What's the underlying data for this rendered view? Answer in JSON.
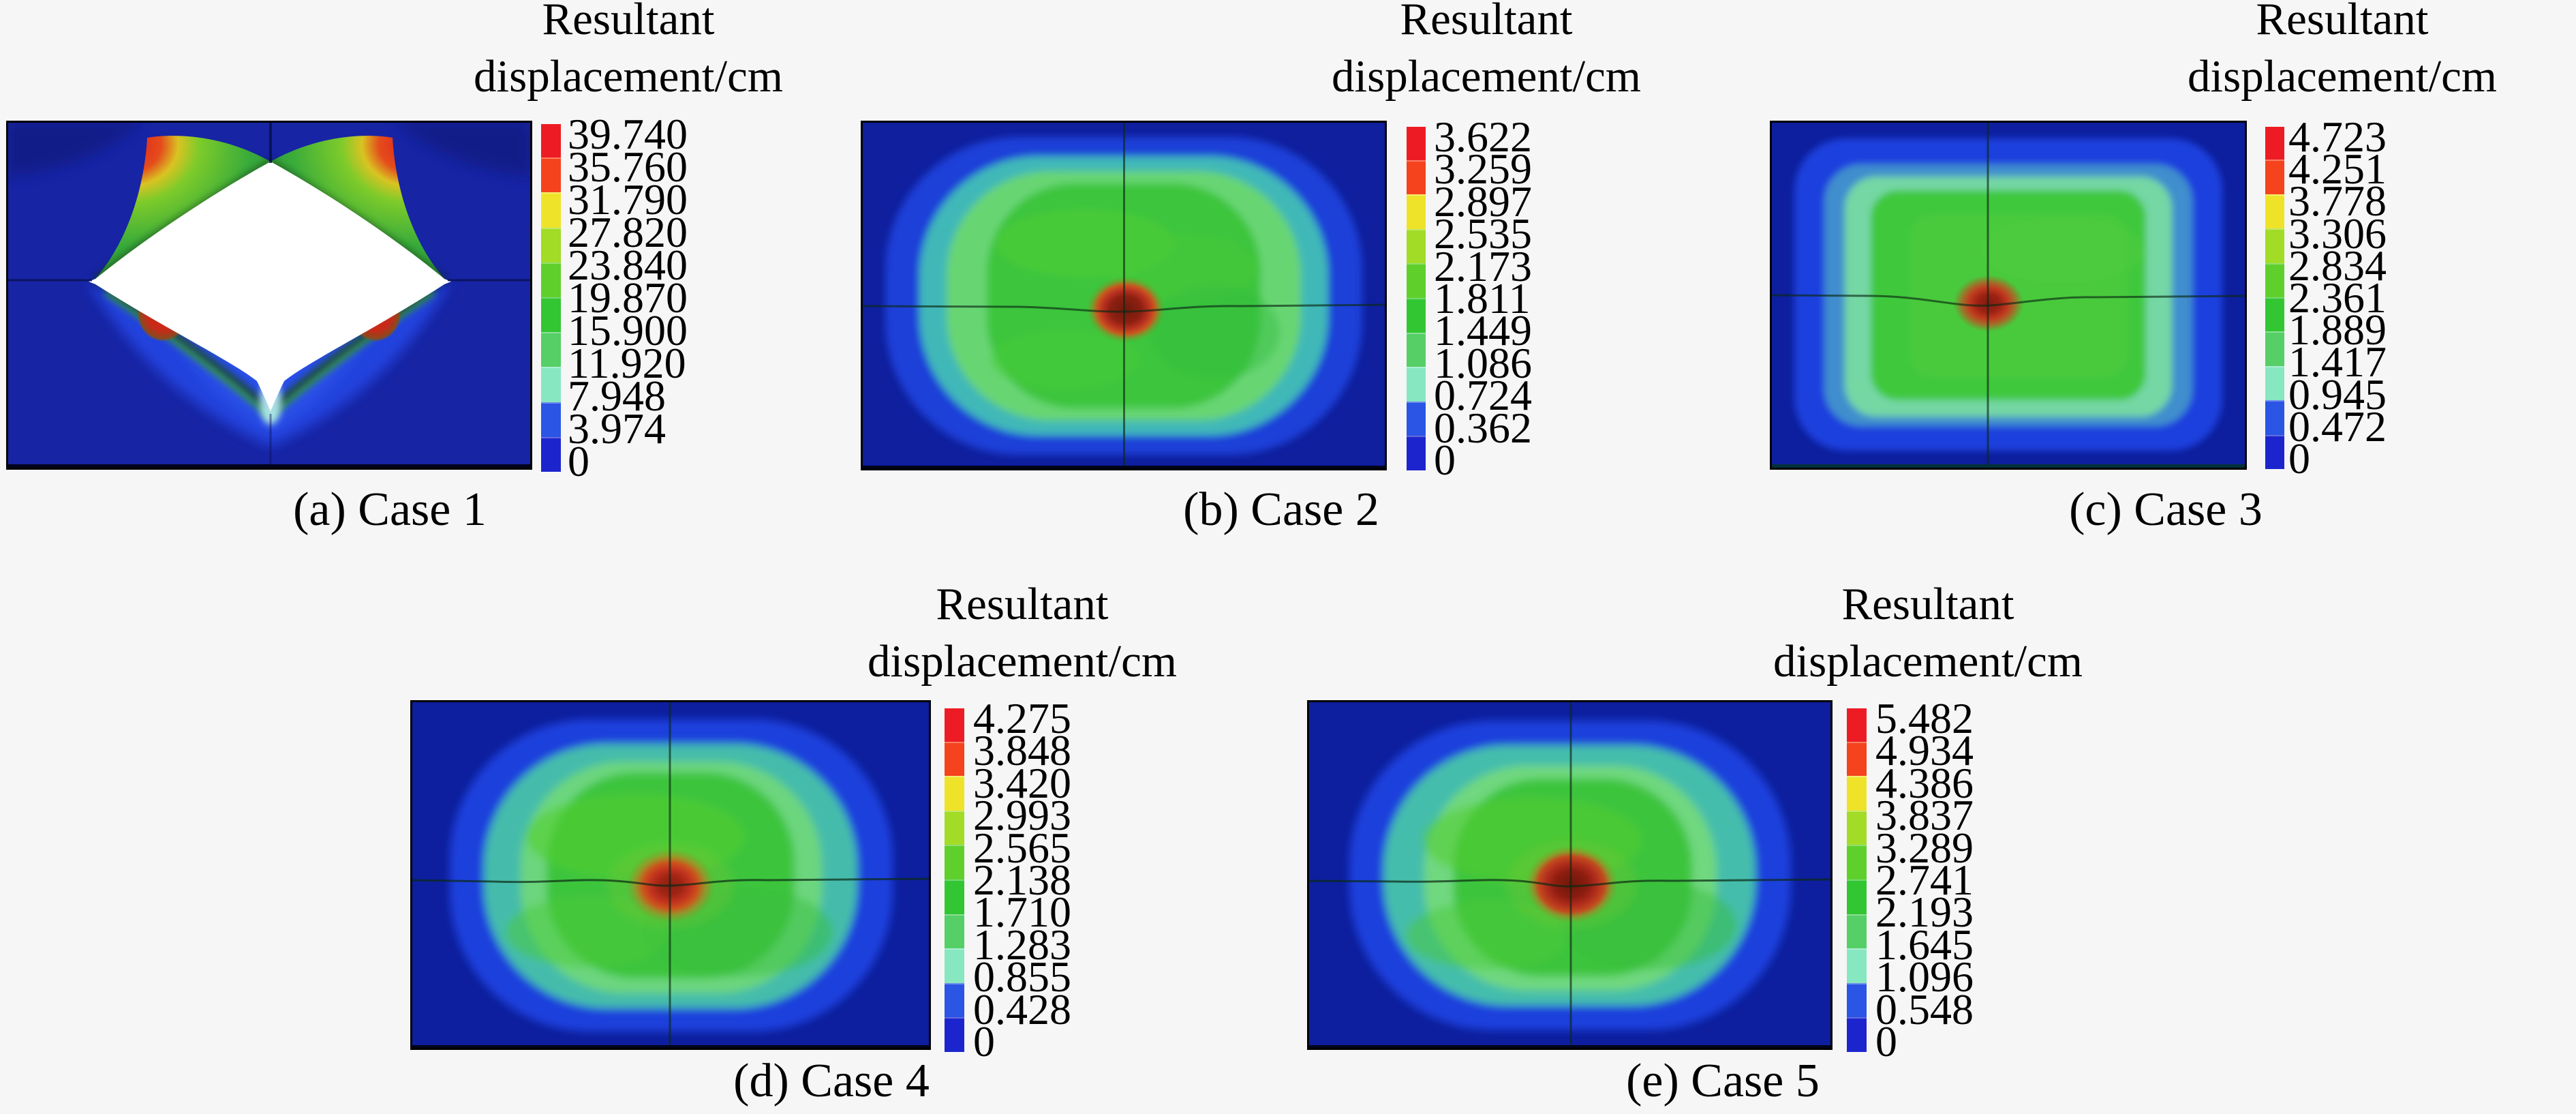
{
  "figure": {
    "background_color": "#f6f6f6",
    "text_color": "#000000",
    "legend": {
      "title_line1": "Resultant",
      "title_line2": "displacement/cm",
      "segment_colors_top_to_bottom": [
        "#ed1c24",
        "#f5431d",
        "#efe32a",
        "#a2dc26",
        "#5fd02b",
        "#33c633",
        "#55cf66",
        "#87e7c1",
        "#2a55e5",
        "#1c25cd"
      ]
    },
    "panels": [
      {
        "id": "a",
        "case": "Case 1",
        "caption": "(a) Case 1",
        "tick_labels": [
          "39.740",
          "35.760",
          "31.790",
          "27.820",
          "23.840",
          "19.870",
          "15.900",
          "11.920",
          "7.948",
          "3.974",
          "0"
        ]
      },
      {
        "id": "b",
        "case": "Case 2",
        "caption": "(b) Case 2",
        "tick_labels": [
          "3.622",
          "3.259",
          "2.897",
          "2.535",
          "2.173",
          "1.811",
          "1.449",
          "1.086",
          "0.724",
          "0.362",
          "0"
        ]
      },
      {
        "id": "c",
        "case": "Case 3",
        "caption": "(c) Case 3",
        "tick_labels": [
          "4.723",
          "4.251",
          "3.778",
          "3.306",
          "2.834",
          "2.361",
          "1.889",
          "1.417",
          "0.945",
          "0.472",
          "0"
        ]
      },
      {
        "id": "d",
        "case": "Case 4",
        "caption": "(d) Case 4",
        "tick_labels": [
          "4.275",
          "3.848",
          "3.420",
          "2.993",
          "2.565",
          "2.138",
          "1.710",
          "1.283",
          "0.855",
          "0.428",
          "0"
        ]
      },
      {
        "id": "e",
        "case": "Case 5",
        "caption": "(e) Case 5",
        "tick_labels": [
          "5.482",
          "4.934",
          "4.386",
          "3.837",
          "3.289",
          "2.741",
          "2.193",
          "1.645",
          "1.096",
          "0.548",
          "0"
        ]
      }
    ]
  },
  "chart_data": [
    {
      "type": "heatmap",
      "panel": "(a) Case 1",
      "title": "Resultant displacement/cm",
      "units": "cm",
      "min": 0,
      "max": 39.74,
      "colorbar_ticks": [
        39.74,
        35.76,
        31.79,
        27.82,
        23.84,
        19.87,
        15.9,
        11.92,
        7.948,
        3.974,
        0
      ],
      "legend_position": "right",
      "pattern": "saturated white four-point star with green-to-red corner lobes on dark blue field"
    },
    {
      "type": "heatmap",
      "panel": "(b) Case 2",
      "title": "Resultant displacement/cm",
      "units": "cm",
      "min": 0,
      "max": 3.622,
      "colorbar_ticks": [
        3.622,
        3.259,
        2.897,
        2.535,
        2.173,
        1.811,
        1.449,
        1.086,
        0.724,
        0.362,
        0
      ],
      "legend_position": "right",
      "pattern": "green rounded oval contour with dark-red peak spot at center crosshair on dark blue field"
    },
    {
      "type": "heatmap",
      "panel": "(c) Case 3",
      "title": "Resultant displacement/cm",
      "units": "cm",
      "min": 0,
      "max": 4.723,
      "colorbar_ticks": [
        4.723,
        4.251,
        3.778,
        3.306,
        2.834,
        2.361,
        1.889,
        1.417,
        0.945,
        0.472,
        0
      ],
      "legend_position": "right",
      "pattern": "green rounded-rectangle contour rings with dark-red peak spot left of center on dark blue field"
    },
    {
      "type": "heatmap",
      "panel": "(d) Case 4",
      "title": "Resultant displacement/cm",
      "units": "cm",
      "min": 0,
      "max": 4.275,
      "colorbar_ticks": [
        4.275,
        3.848,
        3.42,
        2.993,
        2.565,
        2.138,
        1.71,
        1.283,
        0.855,
        0.428,
        0
      ],
      "legend_position": "right",
      "pattern": "green oval contour with orange-red peak spot at center crosshair on dark blue field"
    },
    {
      "type": "heatmap",
      "panel": "(e) Case 5",
      "title": "Resultant displacement/cm",
      "units": "cm",
      "min": 0,
      "max": 5.482,
      "colorbar_ticks": [
        5.482,
        4.934,
        4.386,
        3.837,
        3.289,
        2.741,
        2.193,
        1.645,
        1.096,
        0.548,
        0
      ],
      "legend_position": "right",
      "pattern": "green oval contour with large dark-red peak spot at center crosshair on dark blue field"
    }
  ]
}
